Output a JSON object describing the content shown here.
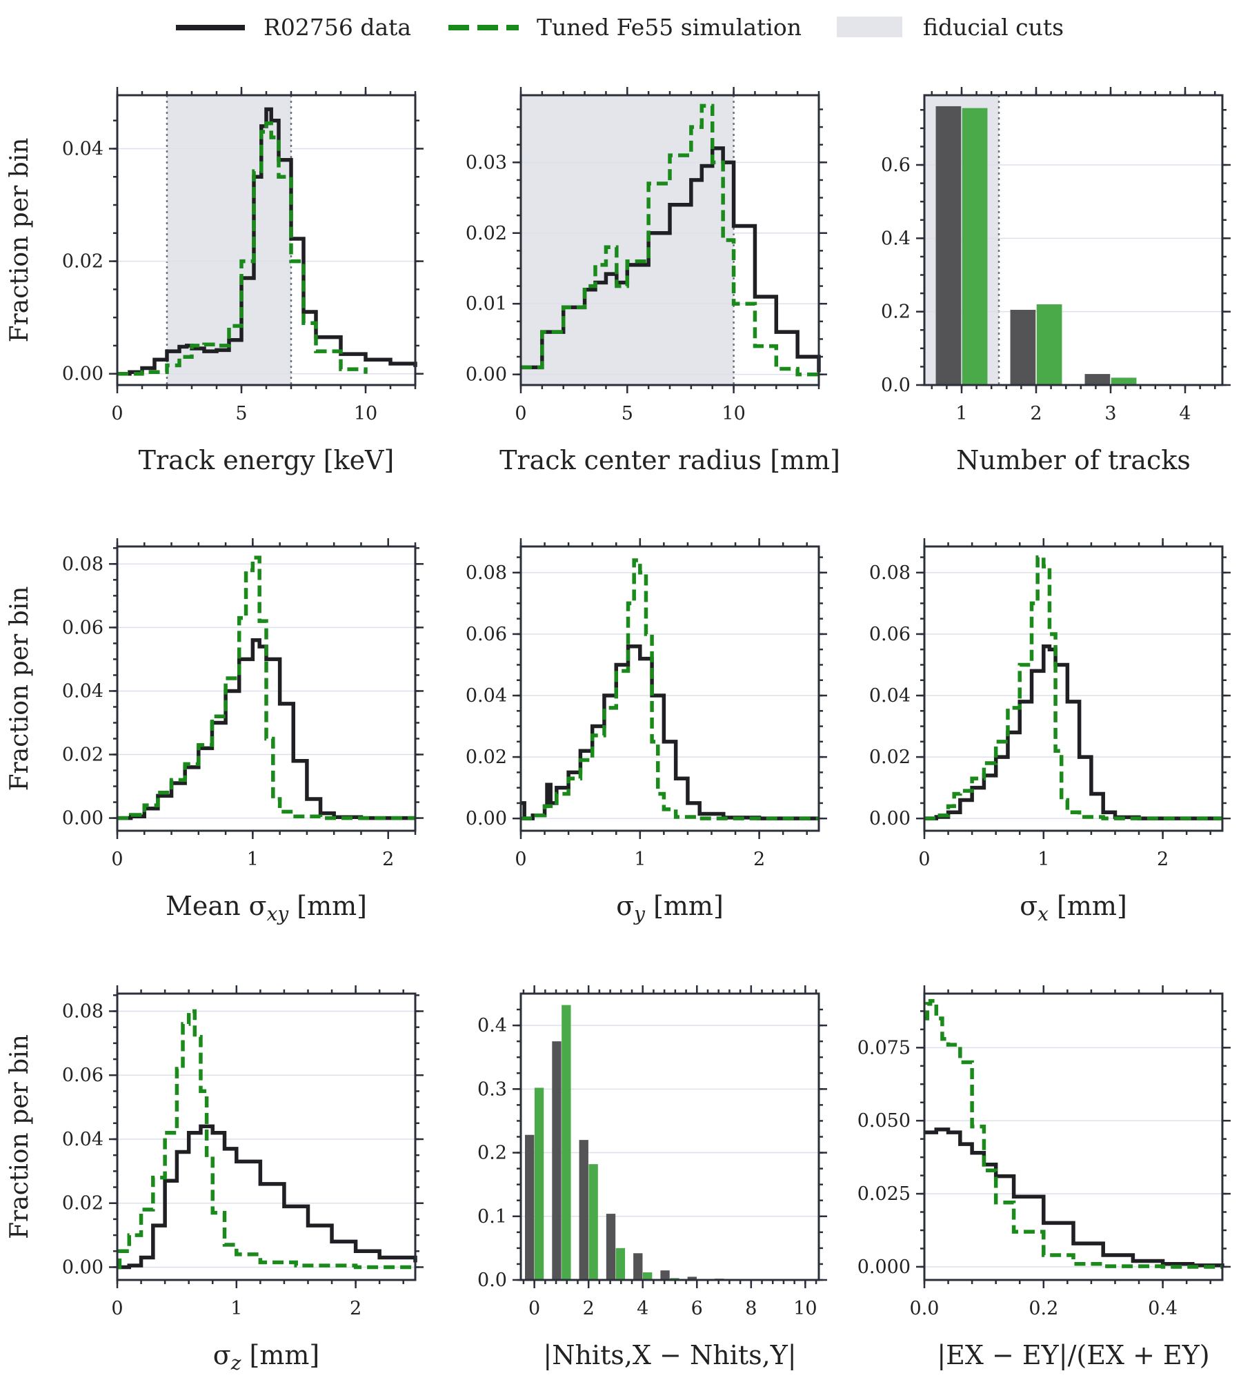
{
  "legend": {
    "items": [
      {
        "label": "R02756 data",
        "color": "#1f1f24",
        "style": "solid"
      },
      {
        "label": "Tuned Fe55 simulation",
        "color": "#1a8a1a",
        "style": "dashed"
      },
      {
        "label": "fiducial cuts",
        "color": "#e3e5ea",
        "style": "patch"
      }
    ]
  },
  "chart_data": [
    {
      "type": "line",
      "id": "energy",
      "xlabel": "Track energy [keV]",
      "ylabel": "Fraction per bin",
      "xlim": [
        0,
        12
      ],
      "ylim": [
        -0.002,
        0.0495
      ],
      "xticks": [
        0,
        5,
        10
      ],
      "xtick_labels": [
        "0",
        "5",
        "10"
      ],
      "yticks": [
        0.0,
        0.02,
        0.04
      ],
      "ytick_labels": [
        "0.00",
        "0.02",
        "0.04"
      ],
      "fiducial": [
        2,
        7
      ],
      "series": [
        {
          "name": "R02756 data",
          "style": "solid",
          "x": [
            0,
            0.5,
            1,
            1.5,
            2,
            2.5,
            2.8,
            3,
            3.5,
            4,
            4.5,
            5,
            5.5,
            5.8,
            6,
            6.2,
            6.5,
            7,
            7.5,
            8,
            9,
            10,
            11,
            12
          ],
          "y": [
            0,
            0.0003,
            0.001,
            0.0025,
            0.004,
            0.0048,
            0.005,
            0.0045,
            0.004,
            0.0042,
            0.006,
            0.017,
            0.035,
            0.044,
            0.047,
            0.045,
            0.038,
            0.024,
            0.011,
            0.0065,
            0.0035,
            0.0025,
            0.0018,
            0.0012
          ]
        },
        {
          "name": "Tuned Fe55 simulation",
          "style": "dashed",
          "x": [
            0,
            1,
            2,
            2.5,
            3,
            3.5,
            4,
            4.5,
            5,
            5.5,
            5.8,
            6,
            6.2,
            6.5,
            7,
            7.5,
            8,
            9,
            10
          ],
          "y": [
            0,
            0.0003,
            0.0015,
            0.003,
            0.005,
            0.0052,
            0.005,
            0.0085,
            0.02,
            0.036,
            0.043,
            0.0445,
            0.042,
            0.035,
            0.02,
            0.009,
            0.004,
            0.0008,
            0.0
          ]
        }
      ]
    },
    {
      "type": "line",
      "id": "radius",
      "xlabel": "Track center radius [mm]",
      "ylabel": "",
      "xlim": [
        0,
        14
      ],
      "ylim": [
        -0.0015,
        0.0395
      ],
      "xticks": [
        0,
        5,
        10
      ],
      "xtick_labels": [
        "0",
        "5",
        "10"
      ],
      "yticks": [
        0.0,
        0.01,
        0.02,
        0.03
      ],
      "ytick_labels": [
        "0.00",
        "0.01",
        "0.02",
        "0.03"
      ],
      "fiducial": [
        0,
        10
      ],
      "series": [
        {
          "name": "R02756 data",
          "style": "solid",
          "x": [
            0,
            1,
            2,
            3,
            3.5,
            4,
            4.5,
            5,
            6,
            7,
            8,
            8.5,
            9,
            9.5,
            10,
            11,
            12,
            13,
            14
          ],
          "y": [
            0.001,
            0.006,
            0.0095,
            0.012,
            0.013,
            0.0142,
            0.013,
            0.0155,
            0.02,
            0.024,
            0.0275,
            0.0295,
            0.032,
            0.03,
            0.021,
            0.011,
            0.006,
            0.0025,
            0.0003
          ]
        },
        {
          "name": "Tuned Fe55 simulation",
          "style": "dashed",
          "x": [
            0,
            1,
            2,
            3,
            3.5,
            4,
            4.5,
            5,
            6,
            7,
            8,
            8.5,
            9,
            9.5,
            10,
            11,
            12,
            13,
            14
          ],
          "y": [
            0.001,
            0.006,
            0.0095,
            0.0125,
            0.0155,
            0.018,
            0.0125,
            0.016,
            0.027,
            0.031,
            0.035,
            0.038,
            0.03,
            0.019,
            0.01,
            0.004,
            0.0008,
            0.0,
            0.0
          ]
        }
      ]
    },
    {
      "type": "bar",
      "id": "ntracks",
      "xlabel": "Number of tracks",
      "ylabel": "",
      "xlim": [
        0.5,
        4.5
      ],
      "ylim": [
        0,
        0.79
      ],
      "xticks": [
        1,
        2,
        3,
        4
      ],
      "xtick_labels": [
        "1",
        "2",
        "3",
        "4"
      ],
      "yticks": [
        0.0,
        0.2,
        0.4,
        0.6
      ],
      "ytick_labels": [
        "0.0",
        "0.2",
        "0.4",
        "0.6"
      ],
      "fiducial": [
        0.5,
        1.5
      ],
      "categories": [
        1,
        2,
        3,
        4
      ],
      "series": [
        {
          "name": "R02756 data",
          "values": [
            0.76,
            0.205,
            0.03,
            0.0
          ]
        },
        {
          "name": "Tuned Fe55 simulation",
          "values": [
            0.755,
            0.22,
            0.02,
            0.0
          ]
        }
      ]
    },
    {
      "type": "line",
      "id": "sigxy",
      "xlabel": "Mean σxy [mm]",
      "ylabel": "Fraction per bin",
      "xlim": [
        0,
        2.2
      ],
      "ylim": [
        -0.004,
        0.0855
      ],
      "xticks": [
        0,
        1,
        2
      ],
      "xtick_labels": [
        "0",
        "1",
        "2"
      ],
      "yticks": [
        0.0,
        0.02,
        0.04,
        0.06,
        0.08
      ],
      "ytick_labels": [
        "0.00",
        "0.02",
        "0.04",
        "0.06",
        "0.08"
      ],
      "series": [
        {
          "name": "R02756 data",
          "style": "solid",
          "x": [
            0,
            0.1,
            0.2,
            0.3,
            0.4,
            0.5,
            0.6,
            0.7,
            0.8,
            0.9,
            1.0,
            1.05,
            1.1,
            1.2,
            1.3,
            1.4,
            1.5,
            1.6,
            1.8,
            2.2
          ],
          "y": [
            0,
            0.0005,
            0.003,
            0.007,
            0.011,
            0.016,
            0.022,
            0.03,
            0.04,
            0.05,
            0.056,
            0.054,
            0.05,
            0.036,
            0.018,
            0.006,
            0.0015,
            0.0003,
            0.0,
            0.0
          ]
        },
        {
          "name": "Tuned Fe55 simulation",
          "style": "dashed",
          "x": [
            0,
            0.1,
            0.2,
            0.3,
            0.4,
            0.5,
            0.6,
            0.7,
            0.8,
            0.9,
            0.95,
            1.0,
            1.05,
            1.1,
            1.15,
            1.2,
            1.3,
            1.5,
            2.2
          ],
          "y": [
            0,
            0.001,
            0.004,
            0.008,
            0.012,
            0.017,
            0.023,
            0.032,
            0.044,
            0.063,
            0.078,
            0.082,
            0.062,
            0.025,
            0.006,
            0.002,
            0.0005,
            0.0,
            0.0
          ]
        }
      ]
    },
    {
      "type": "line",
      "id": "sigy",
      "xlabel": "σy [mm]",
      "ylabel": "",
      "xlim": [
        0,
        2.5
      ],
      "ylim": [
        -0.004,
        0.0885
      ],
      "xticks": [
        0,
        1,
        2
      ],
      "xtick_labels": [
        "0",
        "1",
        "2"
      ],
      "yticks": [
        0.0,
        0.02,
        0.04,
        0.06,
        0.08
      ],
      "ytick_labels": [
        "0.00",
        "0.02",
        "0.04",
        "0.06",
        "0.08"
      ],
      "series": [
        {
          "name": "R02756 data",
          "style": "solid",
          "x": [
            0,
            0.03,
            0.1,
            0.2,
            0.22,
            0.25,
            0.3,
            0.4,
            0.5,
            0.6,
            0.7,
            0.8,
            0.9,
            1.0,
            1.1,
            1.2,
            1.3,
            1.4,
            1.5,
            1.7,
            2.0,
            2.5
          ],
          "y": [
            0.005,
            0.0,
            0.001,
            0.004,
            0.011,
            0.005,
            0.01,
            0.015,
            0.022,
            0.03,
            0.04,
            0.05,
            0.056,
            0.052,
            0.04,
            0.025,
            0.013,
            0.005,
            0.0015,
            0.0003,
            0.0,
            0.0
          ]
        },
        {
          "name": "Tuned Fe55 simulation",
          "style": "dashed",
          "x": [
            0,
            0.1,
            0.2,
            0.3,
            0.4,
            0.5,
            0.6,
            0.7,
            0.8,
            0.9,
            0.95,
            1.0,
            1.05,
            1.1,
            1.15,
            1.2,
            1.3,
            1.5,
            2.5
          ],
          "y": [
            0,
            0.001,
            0.004,
            0.008,
            0.013,
            0.019,
            0.027,
            0.036,
            0.048,
            0.07,
            0.084,
            0.08,
            0.06,
            0.025,
            0.008,
            0.003,
            0.0005,
            0.0,
            0.0
          ]
        }
      ]
    },
    {
      "type": "line",
      "id": "sigx",
      "xlabel": "σx [mm]",
      "ylabel": "",
      "xlim": [
        0,
        2.5
      ],
      "ylim": [
        -0.004,
        0.0885
      ],
      "xticks": [
        0,
        1,
        2
      ],
      "xtick_labels": [
        "0",
        "1",
        "2"
      ],
      "yticks": [
        0.0,
        0.02,
        0.04,
        0.06,
        0.08
      ],
      "ytick_labels": [
        "0.00",
        "0.02",
        "0.04",
        "0.06",
        "0.08"
      ],
      "series": [
        {
          "name": "R02756 data",
          "style": "solid",
          "x": [
            0,
            0.1,
            0.2,
            0.3,
            0.4,
            0.5,
            0.6,
            0.7,
            0.8,
            0.9,
            1.0,
            1.05,
            1.1,
            1.2,
            1.3,
            1.4,
            1.5,
            1.6,
            1.8,
            2.5
          ],
          "y": [
            0,
            0.0005,
            0.002,
            0.006,
            0.01,
            0.014,
            0.02,
            0.028,
            0.038,
            0.048,
            0.056,
            0.055,
            0.05,
            0.038,
            0.02,
            0.008,
            0.002,
            0.0004,
            0.0,
            0.0
          ]
        },
        {
          "name": "Tuned Fe55 simulation",
          "style": "dashed",
          "x": [
            0,
            0.1,
            0.2,
            0.25,
            0.3,
            0.4,
            0.5,
            0.6,
            0.7,
            0.8,
            0.9,
            0.95,
            1.0,
            1.05,
            1.1,
            1.15,
            1.2,
            1.3,
            1.5,
            2.5
          ],
          "y": [
            0,
            0.001,
            0.004,
            0.008,
            0.009,
            0.013,
            0.018,
            0.025,
            0.036,
            0.05,
            0.07,
            0.085,
            0.082,
            0.06,
            0.022,
            0.006,
            0.002,
            0.0005,
            0.0,
            0.0
          ]
        }
      ]
    },
    {
      "type": "line",
      "id": "sigz",
      "xlabel": "σz [mm]",
      "ylabel": "Fraction per bin",
      "xlim": [
        0,
        2.5
      ],
      "ylim": [
        -0.004,
        0.0855
      ],
      "xticks": [
        0,
        1,
        2
      ],
      "xtick_labels": [
        "0",
        "1",
        "2"
      ],
      "yticks": [
        0.0,
        0.02,
        0.04,
        0.06,
        0.08
      ],
      "ytick_labels": [
        "0.00",
        "0.02",
        "0.04",
        "0.06",
        "0.08"
      ],
      "series": [
        {
          "name": "R02756 data",
          "style": "solid",
          "x": [
            0,
            0.1,
            0.2,
            0.3,
            0.4,
            0.5,
            0.6,
            0.7,
            0.8,
            0.9,
            1.0,
            1.2,
            1.4,
            1.6,
            1.8,
            2.0,
            2.2,
            2.5
          ],
          "y": [
            0,
            0.0005,
            0.003,
            0.013,
            0.027,
            0.036,
            0.042,
            0.044,
            0.042,
            0.037,
            0.033,
            0.026,
            0.019,
            0.013,
            0.008,
            0.005,
            0.003,
            0.0015
          ]
        },
        {
          "name": "Tuned Fe55 simulation",
          "style": "dashed",
          "x": [
            0,
            0.02,
            0.1,
            0.2,
            0.3,
            0.4,
            0.5,
            0.55,
            0.6,
            0.65,
            0.7,
            0.75,
            0.8,
            0.9,
            1.0,
            1.2,
            1.5,
            2.0,
            2.5
          ],
          "y": [
            0,
            0.005,
            0.01,
            0.018,
            0.028,
            0.042,
            0.062,
            0.076,
            0.08,
            0.072,
            0.055,
            0.035,
            0.017,
            0.007,
            0.004,
            0.0015,
            0.0005,
            0.0,
            0.0
          ]
        }
      ]
    },
    {
      "type": "bar",
      "id": "nhits",
      "xlabel": "|Nhits,X − Nhits,Y|",
      "ylabel": "",
      "xlim": [
        -0.5,
        10.5
      ],
      "ylim": [
        0,
        0.45
      ],
      "xticks": [
        0,
        2,
        4,
        6,
        8,
        10
      ],
      "xtick_labels": [
        "0",
        "2",
        "4",
        "6",
        "8",
        "10"
      ],
      "yticks": [
        0.0,
        0.1,
        0.2,
        0.3,
        0.4
      ],
      "ytick_labels": [
        "0.0",
        "0.1",
        "0.2",
        "0.3",
        "0.4"
      ],
      "categories": [
        0,
        1,
        2,
        3,
        4,
        5,
        6,
        7,
        8,
        9,
        10
      ],
      "series": [
        {
          "name": "R02756 data",
          "values": [
            0.228,
            0.375,
            0.22,
            0.104,
            0.042,
            0.015,
            0.005,
            0.002,
            0.001,
            0.0,
            0.0
          ]
        },
        {
          "name": "Tuned Fe55 simulation",
          "values": [
            0.302,
            0.432,
            0.182,
            0.05,
            0.012,
            0.003,
            0.001,
            0.0,
            0.0,
            0.0,
            0.0
          ]
        }
      ]
    },
    {
      "type": "line",
      "id": "easym",
      "xlabel": "|EX − EY|/(EX + EY)",
      "ylabel": "",
      "xlim": [
        0,
        0.5
      ],
      "ylim": [
        -0.0045,
        0.0935
      ],
      "xticks": [
        0.0,
        0.2,
        0.4
      ],
      "xtick_labels": [
        "0.0",
        "0.2",
        "0.4"
      ],
      "yticks": [
        0.0,
        0.025,
        0.05,
        0.075
      ],
      "ytick_labels": [
        "0.000",
        "0.025",
        "0.050",
        "0.075"
      ],
      "series": [
        {
          "name": "R02756 data",
          "style": "solid",
          "x": [
            0,
            0.02,
            0.04,
            0.06,
            0.08,
            0.1,
            0.12,
            0.15,
            0.2,
            0.25,
            0.3,
            0.35,
            0.4,
            0.45,
            0.5
          ],
          "y": [
            0.046,
            0.047,
            0.046,
            0.042,
            0.039,
            0.035,
            0.031,
            0.024,
            0.015,
            0.008,
            0.004,
            0.002,
            0.001,
            0.0005,
            0.0002
          ]
        },
        {
          "name": "Tuned Fe55 simulation",
          "style": "dashed",
          "x": [
            0,
            0.005,
            0.01,
            0.02,
            0.03,
            0.04,
            0.06,
            0.08,
            0.1,
            0.12,
            0.15,
            0.2,
            0.25,
            0.3,
            0.4,
            0.5
          ],
          "y": [
            0.085,
            0.09,
            0.091,
            0.085,
            0.078,
            0.076,
            0.07,
            0.048,
            0.033,
            0.022,
            0.012,
            0.004,
            0.001,
            0.0002,
            0.0,
            0.0
          ]
        }
      ]
    }
  ]
}
